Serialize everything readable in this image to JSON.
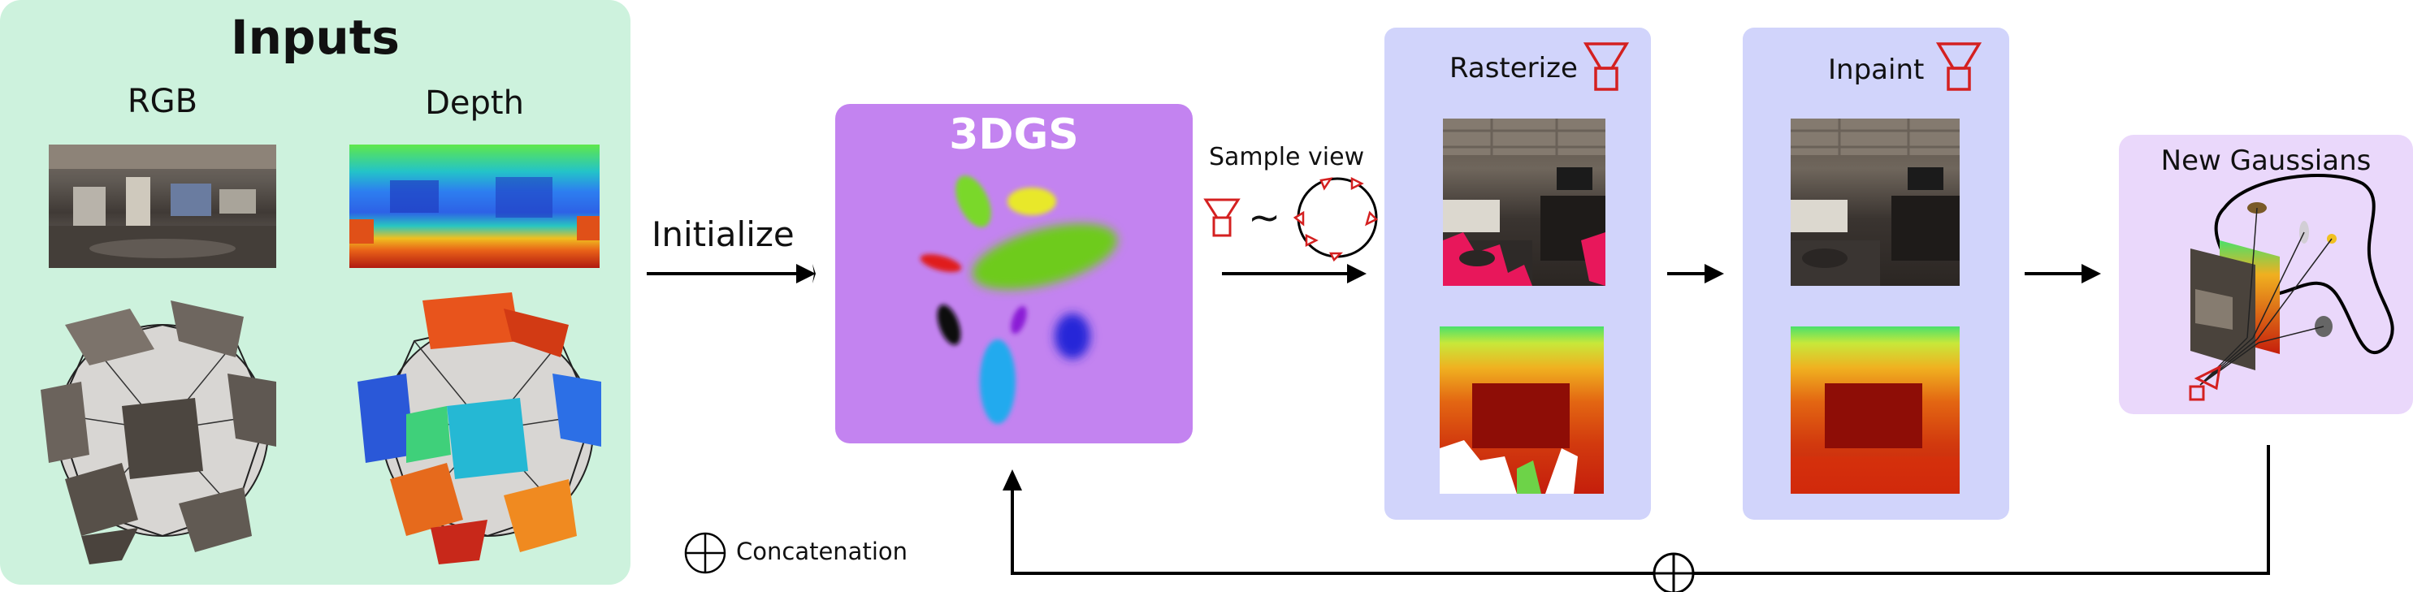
{
  "inputs": {
    "title": "Inputs",
    "rgb_label": "RGB",
    "depth_label": "Depth"
  },
  "init_label": "Initialize",
  "gs_label": "3DGS",
  "sample_view_label": "Sample view",
  "tilde": "~",
  "rasterize_label": "Rasterize",
  "inpaint_label": "Inpaint",
  "new_gaussians_label": "New Gaussians",
  "concat_label": "Concatenation",
  "colors": {
    "inputs_panel": "#cdf2dd",
    "view_panel": "#d1d4fb",
    "gs_box": "#c383f0",
    "new_panel": "#ead8fb",
    "camera": "#d42020"
  }
}
